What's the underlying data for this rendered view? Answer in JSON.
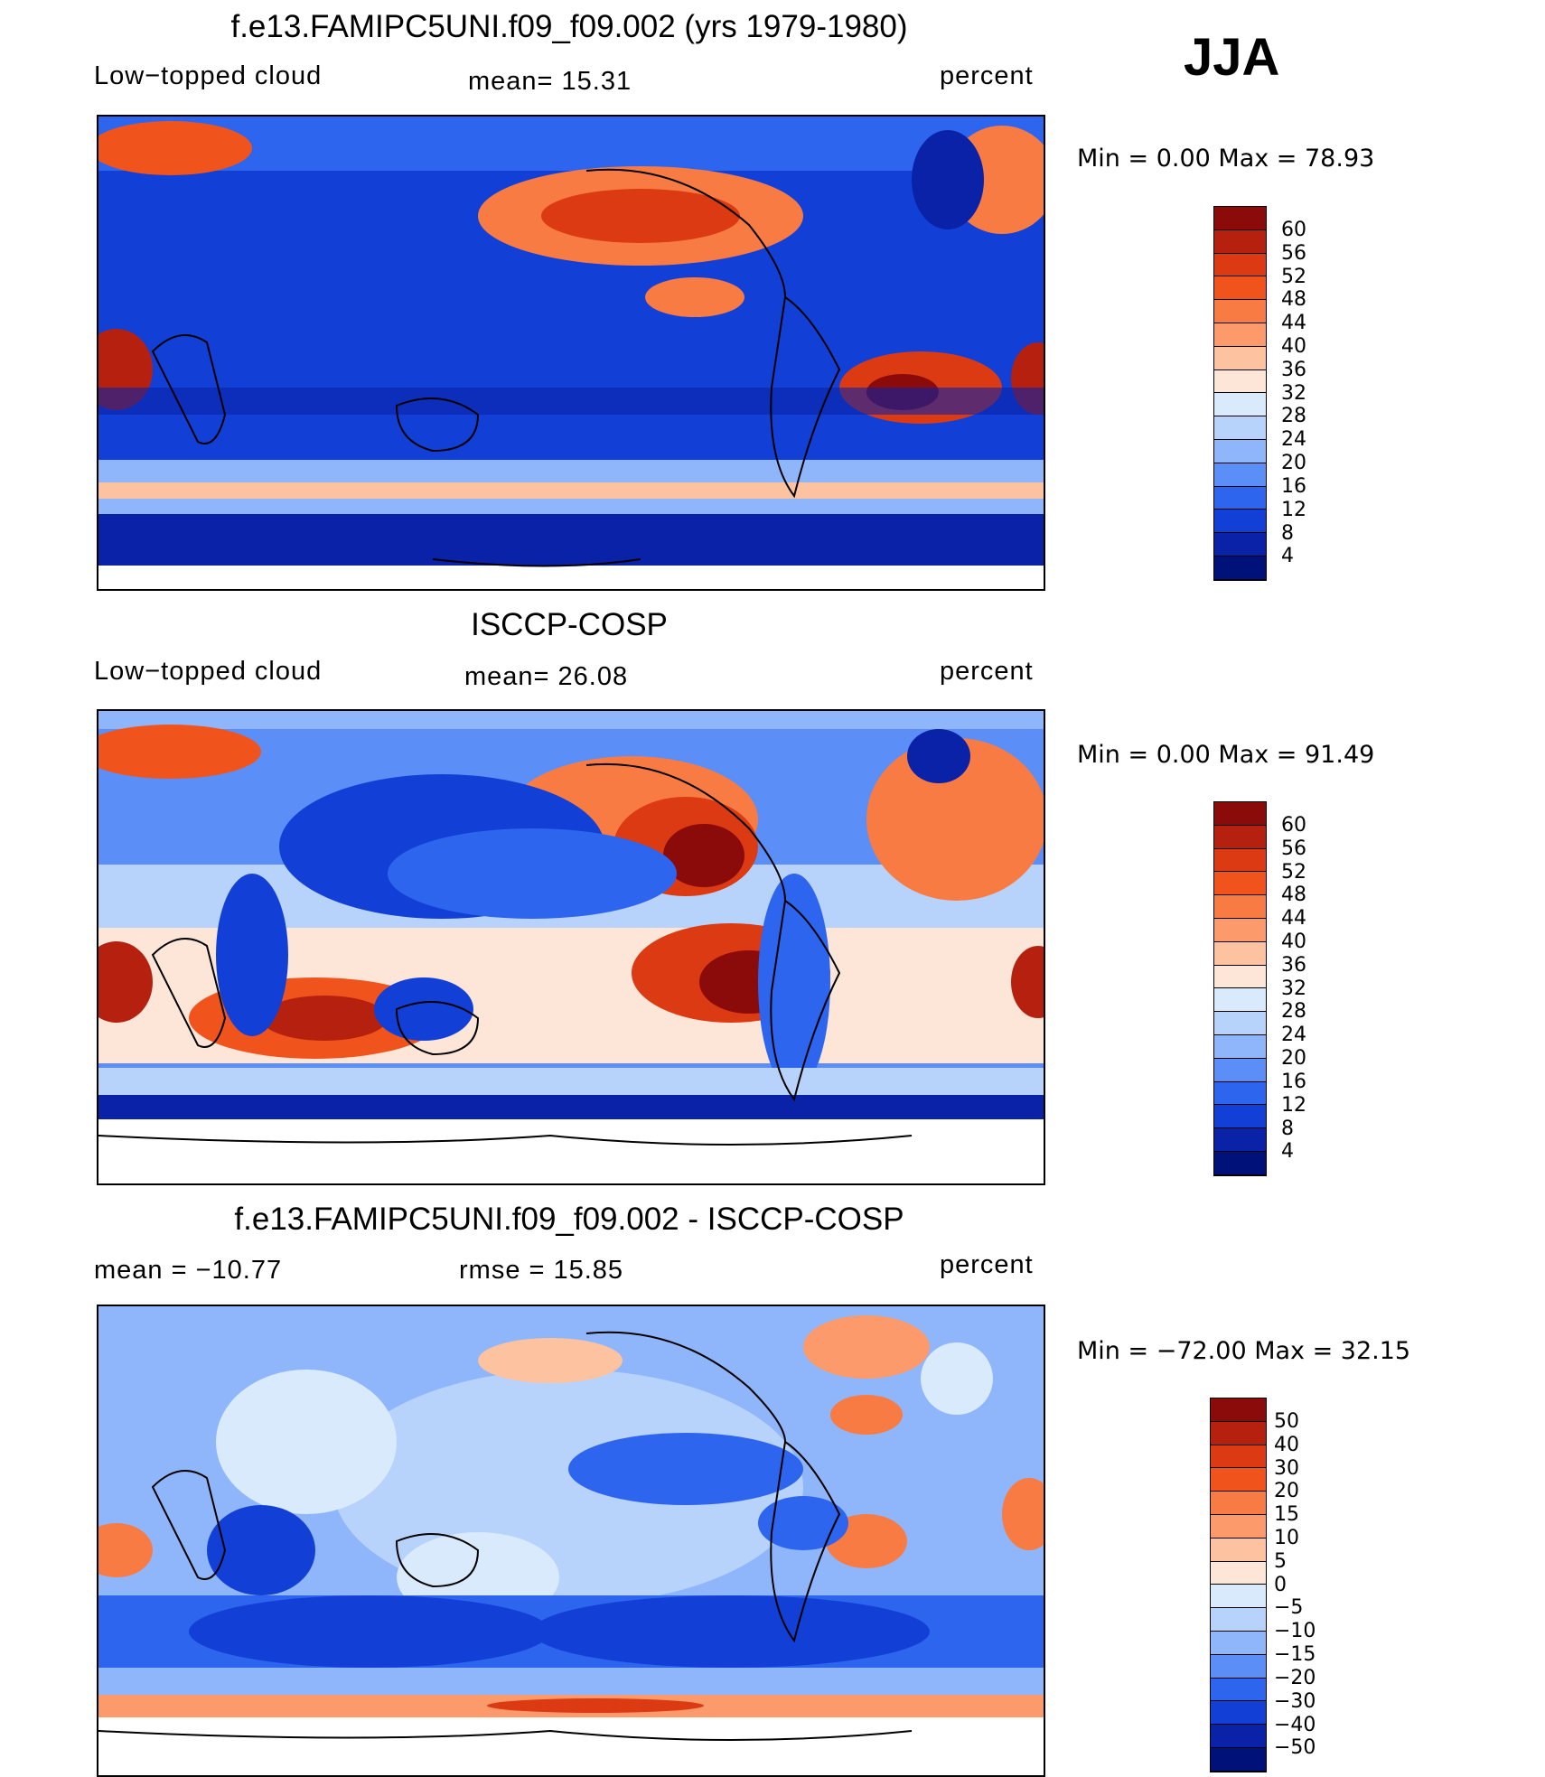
{
  "season": "JJA",
  "chart_data": [
    {
      "type": "heatmap",
      "title": "f.e13.FAMIPC5UNI.f09_f09.002 (yrs 1979-1980)",
      "variable": "Low−topped cloud",
      "stat_text": "mean=   15.31",
      "mean": 15.31,
      "units": "percent",
      "minmax_text": "Min =     0.00 Max =    78.93",
      "min": 0.0,
      "max": 78.93,
      "levels": [
        "60",
        "56",
        "52",
        "48",
        "44",
        "40",
        "36",
        "32",
        "28",
        "24",
        "20",
        "16",
        "12",
        "8",
        "4"
      ],
      "colors": [
        "#8b0a0a",
        "#b5210e",
        "#dc3a12",
        "#f0541c",
        "#f97b44",
        "#fc9a6c",
        "#fdc2a0",
        "#fde6d8",
        "#d8eafc",
        "#b8d3fb",
        "#8fb6fa",
        "#5b8ff7",
        "#2d65ef",
        "#1240d6",
        "#0a22a8",
        "#00127a"
      ]
    },
    {
      "type": "heatmap",
      "title": "ISCCP-COSP",
      "variable": "Low−topped cloud",
      "stat_text": "mean=   26.08",
      "mean": 26.08,
      "units": "percent",
      "minmax_text": "Min =     0.00 Max =    91.49",
      "min": 0.0,
      "max": 91.49,
      "levels": [
        "60",
        "56",
        "52",
        "48",
        "44",
        "40",
        "36",
        "32",
        "28",
        "24",
        "20",
        "16",
        "12",
        "8",
        "4"
      ],
      "colors": [
        "#8b0a0a",
        "#b5210e",
        "#dc3a12",
        "#f0541c",
        "#f97b44",
        "#fc9a6c",
        "#fdc2a0",
        "#fde6d8",
        "#d8eafc",
        "#b8d3fb",
        "#8fb6fa",
        "#5b8ff7",
        "#2d65ef",
        "#1240d6",
        "#0a22a8",
        "#00127a"
      ]
    },
    {
      "type": "heatmap",
      "title": "f.e13.FAMIPC5UNI.f09_f09.002 - ISCCP-COSP",
      "stat_text": "mean = −10.77",
      "mean": -10.77,
      "rmse_text": "rmse =    15.85",
      "rmse": 15.85,
      "units": "percent",
      "minmax_text": "Min = −72.00 Max =    32.15",
      "min": -72.0,
      "max": 32.15,
      "levels": [
        "50",
        "40",
        "30",
        "20",
        "15",
        "10",
        "5",
        "0",
        "−5",
        "−10",
        "−15",
        "−20",
        "−30",
        "−40",
        "−50"
      ],
      "colors": [
        "#8b0a0a",
        "#b5210e",
        "#dc3a12",
        "#f0541c",
        "#f97b44",
        "#fc9a6c",
        "#fdc2a0",
        "#fde6d8",
        "#d8eafc",
        "#b8d3fb",
        "#8fb6fa",
        "#5b8ff7",
        "#2d65ef",
        "#1240d6",
        "#0a22a8",
        "#00127a"
      ]
    }
  ]
}
